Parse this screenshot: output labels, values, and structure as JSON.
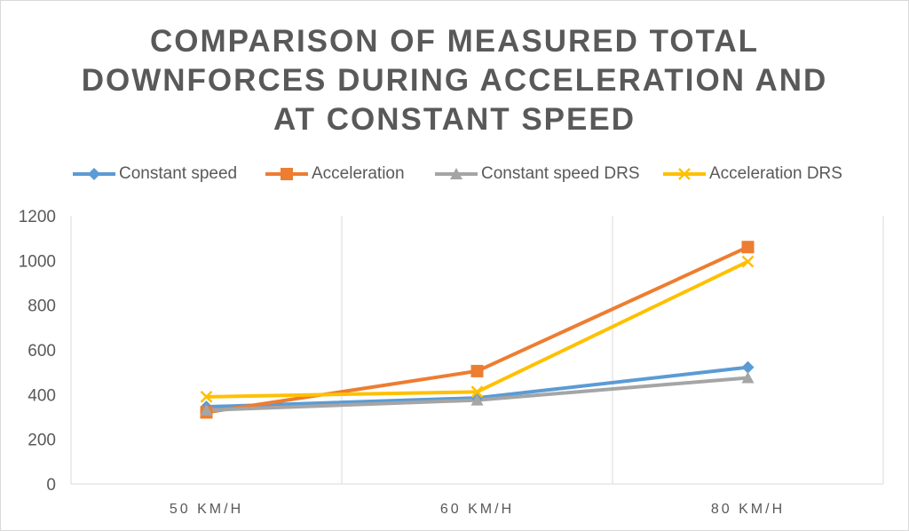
{
  "chart_data": {
    "type": "line",
    "title_lines": [
      "COMPARISON OF MEASURED TOTAL",
      "DOWNFORCES DURING ACCELERATION AND",
      "AT CONSTANT SPEED"
    ],
    "categories": [
      "50 KM/H",
      "60 KM/H",
      "80 KM/H"
    ],
    "series": [
      {
        "name": "Constant speed",
        "values": [
          345,
          385,
          522
        ],
        "color": "#5B9BD5",
        "marker": "diamond"
      },
      {
        "name": "Acceleration",
        "values": [
          320,
          505,
          1060
        ],
        "color": "#ED7D31",
        "marker": "square"
      },
      {
        "name": "Constant speed DRS",
        "values": [
          330,
          375,
          475
        ],
        "color": "#A5A5A5",
        "marker": "triangle"
      },
      {
        "name": "Acceleration DRS",
        "values": [
          390,
          412,
          995
        ],
        "color": "#FFC000",
        "marker": "x"
      }
    ],
    "ylim": [
      0,
      1200
    ],
    "yticks": [
      0,
      200,
      400,
      600,
      800,
      1000,
      1200
    ],
    "legend_position": "top",
    "grid": "vertical"
  }
}
